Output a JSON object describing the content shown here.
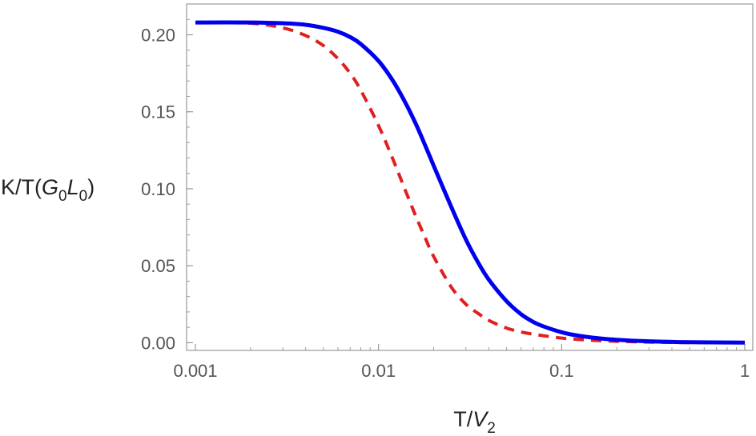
{
  "chart_data": {
    "type": "line",
    "title": "",
    "x_scale": "log",
    "xlim": [
      0.001,
      1
    ],
    "ylim": [
      -0.005,
      0.22
    ],
    "xticks": [
      0.001,
      0.01,
      0.1,
      1
    ],
    "xtick_labels": [
      "0.001",
      "0.01",
      "0.1",
      "1"
    ],
    "yticks": [
      0,
      0.05,
      0.1,
      0.15,
      0.2
    ],
    "ytick_labels": [
      "0.00",
      "0.05",
      "0.10",
      "0.15",
      "0.20"
    ],
    "xlabel": {
      "pre": "T/",
      "var": "V",
      "sub": "2"
    },
    "ylabel": {
      "pre": "K/T(",
      "var1": "G",
      "sub1": "0",
      "var2": "L",
      "sub2": "0",
      "post": ")"
    },
    "grid": false,
    "legend": "none",
    "series": [
      {
        "style": "solid",
        "color": "#0000ee",
        "x": [
          0.001,
          0.002,
          0.003,
          0.004,
          0.005,
          0.006,
          0.007,
          0.008,
          0.01,
          0.012,
          0.014,
          0.016,
          0.018,
          0.02,
          0.025,
          0.03,
          0.035,
          0.04,
          0.05,
          0.06,
          0.07,
          0.08,
          0.1,
          0.12,
          0.15,
          0.2,
          0.3,
          0.5,
          1
        ],
        "y": [
          0.208,
          0.208,
          0.2075,
          0.2065,
          0.2045,
          0.202,
          0.1985,
          0.194,
          0.183,
          0.17,
          0.156,
          0.142,
          0.128,
          0.115,
          0.088,
          0.067,
          0.052,
          0.041,
          0.027,
          0.0185,
          0.0135,
          0.0105,
          0.0068,
          0.0048,
          0.0032,
          0.0019,
          0.0009,
          0.0003,
          0.0001
        ]
      },
      {
        "style": "dashed",
        "color": "#e02020",
        "x": [
          0.001,
          0.002,
          0.003,
          0.004,
          0.005,
          0.006,
          0.007,
          0.008,
          0.01,
          0.012,
          0.014,
          0.016,
          0.018,
          0.02,
          0.025,
          0.03,
          0.035,
          0.04,
          0.05,
          0.06,
          0.07,
          0.08,
          0.1,
          0.12,
          0.15,
          0.2,
          0.3,
          0.5,
          1
        ],
        "y": [
          0.208,
          0.2075,
          0.2045,
          0.1995,
          0.193,
          0.1845,
          0.175,
          0.164,
          0.141,
          0.119,
          0.099,
          0.082,
          0.068,
          0.056,
          0.036,
          0.025,
          0.019,
          0.0145,
          0.0095,
          0.007,
          0.0055,
          0.0045,
          0.003,
          0.0022,
          0.0015,
          0.0009,
          0.0004,
          0.0001,
          0.0
        ]
      }
    ]
  }
}
